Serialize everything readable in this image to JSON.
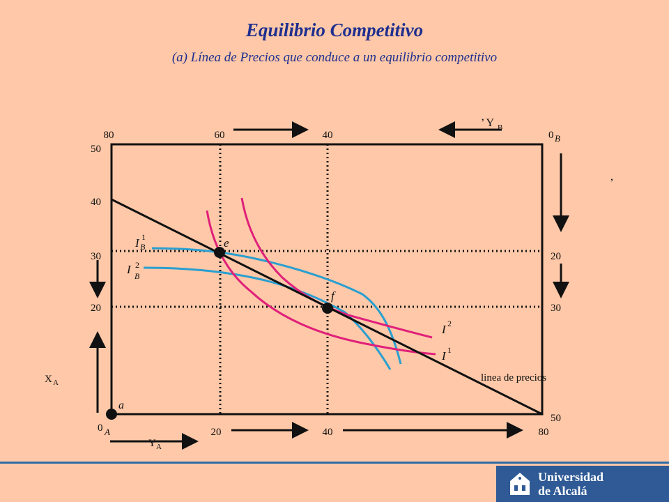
{
  "header": {
    "title": "Equilibrio Competitivo",
    "subtitle": "(a) Línea de Precios que conduce a un equilibrio competitivo"
  },
  "diagram": {
    "top_ticks": [
      "80",
      "60",
      "40"
    ],
    "origin_b": "0",
    "origin_b_sub": "B",
    "origin_a": "0",
    "origin_a_sub": "A",
    "left_ticks": [
      "50",
      "40",
      "30",
      "20"
    ],
    "right_ticks": [
      "20",
      "30",
      "50"
    ],
    "bottom_ticks": [
      "20",
      "40",
      "80"
    ],
    "yb_label": "’ Y",
    "yb_sub": "B",
    "xa_label": "X",
    "xa_sub": "A",
    "ya_label": "Y",
    "ya_sub": "A",
    "stray_mark": ",",
    "point_e": "e",
    "point_f": "f",
    "point_a": "a",
    "ib1_main": "I",
    "ib1_sub": "B",
    "ib1_sup": "1",
    "ib2_main": "I",
    "ib2_sub": "B",
    "ib2_sup": "2",
    "ia2_main": "I",
    "ia2_sup": "2",
    "ia1_main": "I",
    "ia1_sup": "1",
    "price_line_label": "linea de precios"
  },
  "colors": {
    "background": "#FFC8A8",
    "title": "#1F2F8F",
    "indifference_a": "#E0207A",
    "indifference_b": "#2A9FD0",
    "lines": "#111111",
    "footer": "#2C6CA4",
    "logo_bg": "#2F5A95"
  },
  "logo": {
    "line1": "Universidad",
    "line2": "de Alcalá"
  }
}
